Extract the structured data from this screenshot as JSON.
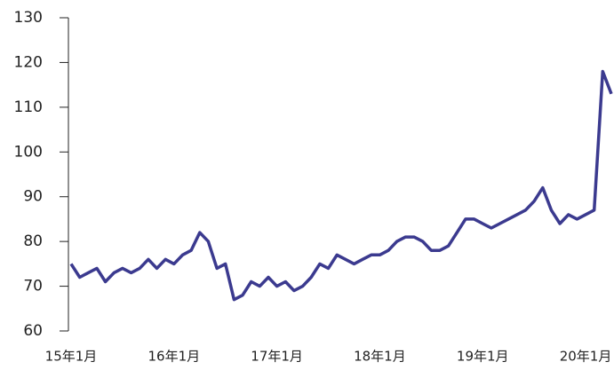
{
  "chart_data": {
    "type": "line",
    "categories": [
      "15年1月",
      null,
      null,
      null,
      null,
      null,
      null,
      null,
      null,
      null,
      null,
      null,
      "16年1月",
      null,
      null,
      null,
      null,
      null,
      null,
      null,
      null,
      null,
      null,
      null,
      "17年1月",
      null,
      null,
      null,
      null,
      null,
      null,
      null,
      null,
      null,
      null,
      null,
      "18年1月",
      null,
      null,
      null,
      null,
      null,
      null,
      null,
      null,
      null,
      null,
      null,
      "19年1月",
      null,
      null,
      null,
      null,
      null,
      null,
      null,
      null,
      null,
      null,
      null,
      "20年1月",
      null,
      null,
      null
    ],
    "values": [
      75,
      72,
      73,
      74,
      71,
      73,
      74,
      73,
      74,
      76,
      74,
      76,
      75,
      77,
      78,
      82,
      80,
      74,
      75,
      67,
      68,
      71,
      70,
      72,
      70,
      71,
      69,
      70,
      72,
      75,
      74,
      77,
      76,
      75,
      76,
      77,
      77,
      78,
      80,
      81,
      81,
      80,
      78,
      78,
      79,
      82,
      85,
      85,
      84,
      83,
      84,
      85,
      86,
      87,
      89,
      92,
      87,
      84,
      86,
      85,
      86,
      87,
      118,
      113
    ],
    "color": "#3b3a8f",
    "ylim": [
      60,
      130
    ],
    "yticks": [
      60,
      70,
      80,
      90,
      100,
      110,
      120,
      130
    ],
    "grid": false
  }
}
